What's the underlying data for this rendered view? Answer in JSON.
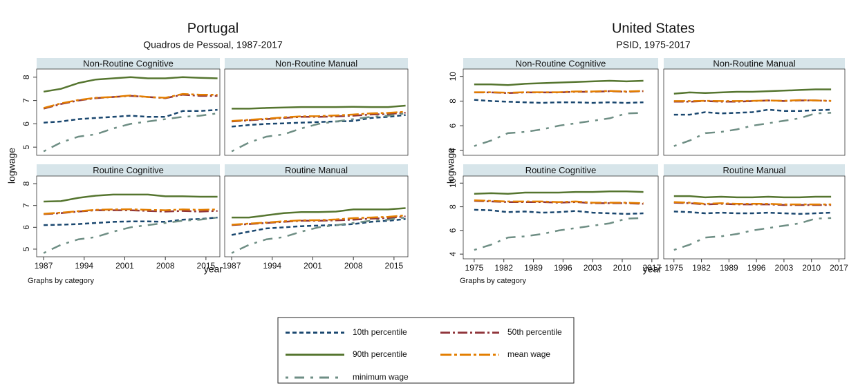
{
  "chart_data": [
    {
      "type": "line",
      "title": "Portugal",
      "subtitle": "Quadros de Pessoal, 1987-2017",
      "xlabel": "year",
      "ylabel": "logwage",
      "note": "Graphs by category",
      "x": [
        1987,
        1990,
        1993,
        1996,
        1999,
        2002,
        2005,
        2008,
        2011,
        2014,
        2017
      ],
      "xlim": [
        1985.8,
        2017.4
      ],
      "xticks": [
        1987,
        1994,
        2001,
        2008,
        2015
      ],
      "ylim": [
        4.65,
        8.35
      ],
      "yticks": [
        5,
        6,
        7,
        8
      ],
      "panels": [
        {
          "title": "Non-Routine Cognitive",
          "values": [
            [
              6.05,
              6.1,
              6.2,
              6.25,
              6.3,
              6.35,
              6.3,
              6.3,
              6.55,
              6.55,
              6.6
            ],
            [
              6.65,
              6.85,
              7.0,
              7.1,
              7.15,
              7.2,
              7.15,
              7.1,
              7.25,
              7.2,
              7.2
            ],
            [
              7.38,
              7.5,
              7.75,
              7.9,
              7.95,
              8.0,
              7.95,
              7.95,
              8.0,
              7.97,
              7.95
            ],
            [
              6.68,
              6.88,
              7.02,
              7.12,
              7.15,
              7.22,
              7.15,
              7.12,
              7.28,
              7.25,
              7.25
            ],
            [
              4.82,
              5.2,
              5.45,
              5.55,
              5.8,
              6.0,
              6.1,
              6.2,
              6.3,
              6.35,
              6.45
            ]
          ]
        },
        {
          "title": "Non-Routine Manual",
          "values": [
            [
              5.88,
              5.95,
              6.0,
              6.02,
              6.05,
              6.08,
              6.1,
              6.12,
              6.25,
              6.3,
              6.38
            ],
            [
              6.1,
              6.15,
              6.2,
              6.25,
              6.3,
              6.3,
              6.32,
              6.35,
              6.4,
              6.42,
              6.48
            ],
            [
              6.65,
              6.65,
              6.68,
              6.7,
              6.72,
              6.72,
              6.72,
              6.73,
              6.72,
              6.72,
              6.78
            ],
            [
              6.12,
              6.17,
              6.22,
              6.28,
              6.32,
              6.33,
              6.36,
              6.4,
              6.45,
              6.47,
              6.52
            ],
            [
              4.82,
              5.2,
              5.45,
              5.55,
              5.8,
              6.0,
              6.1,
              6.2,
              6.3,
              6.35,
              6.45
            ]
          ]
        },
        {
          "title": "Routine Cognitive",
          "values": [
            [
              6.1,
              6.12,
              6.15,
              6.2,
              6.25,
              6.27,
              6.27,
              6.25,
              6.35,
              6.38,
              6.45
            ],
            [
              6.6,
              6.65,
              6.72,
              6.78,
              6.78,
              6.78,
              6.75,
              6.72,
              6.75,
              6.72,
              6.75
            ],
            [
              7.18,
              7.2,
              7.35,
              7.45,
              7.5,
              7.5,
              7.5,
              7.42,
              7.42,
              7.4,
              7.4
            ],
            [
              6.62,
              6.67,
              6.74,
              6.8,
              6.82,
              6.83,
              6.8,
              6.78,
              6.82,
              6.8,
              6.82
            ],
            [
              4.82,
              5.2,
              5.45,
              5.55,
              5.8,
              6.0,
              6.1,
              6.2,
              6.3,
              6.35,
              6.45
            ]
          ]
        },
        {
          "title": "Routine Manual",
          "values": [
            [
              5.65,
              5.8,
              5.95,
              6.0,
              6.05,
              6.08,
              6.1,
              6.15,
              6.25,
              6.3,
              6.38
            ],
            [
              6.1,
              6.15,
              6.2,
              6.25,
              6.3,
              6.3,
              6.32,
              6.35,
              6.4,
              6.42,
              6.5
            ],
            [
              6.45,
              6.45,
              6.55,
              6.65,
              6.7,
              6.7,
              6.72,
              6.82,
              6.82,
              6.82,
              6.88
            ],
            [
              6.12,
              6.17,
              6.22,
              6.28,
              6.32,
              6.33,
              6.36,
              6.42,
              6.45,
              6.48,
              6.55
            ],
            [
              4.82,
              5.2,
              5.45,
              5.55,
              5.8,
              6.0,
              6.1,
              6.2,
              6.3,
              6.35,
              6.45
            ]
          ]
        }
      ]
    },
    {
      "type": "line",
      "title": "United States",
      "subtitle": "PSID, 1975-2017",
      "xlabel": "year",
      "ylabel": "logwage",
      "note": "Graphs by category",
      "x": [
        1975,
        1979,
        1983,
        1987,
        1991,
        1995,
        1999,
        2003,
        2007,
        2011,
        2015
      ],
      "xlim": [
        1972.4,
        2018.5
      ],
      "xticks": [
        1975,
        1982,
        1989,
        1996,
        2003,
        2010,
        2017
      ],
      "ylim": [
        3.6,
        10.6
      ],
      "yticks": [
        4,
        6,
        8,
        10
      ],
      "panels": [
        {
          "title": "Non-Routine Cognitive",
          "values": [
            [
              8.1,
              8.0,
              7.95,
              7.9,
              7.85,
              7.9,
              7.9,
              7.85,
              7.9,
              7.85,
              7.9
            ],
            [
              8.7,
              8.7,
              8.65,
              8.7,
              8.7,
              8.7,
              8.75,
              8.75,
              8.8,
              8.75,
              8.8
            ],
            [
              9.35,
              9.35,
              9.3,
              9.4,
              9.45,
              9.5,
              9.55,
              9.6,
              9.65,
              9.6,
              9.65
            ],
            [
              8.72,
              8.72,
              8.68,
              8.72,
              8.72,
              8.72,
              8.78,
              8.78,
              8.82,
              8.78,
              8.82
            ],
            [
              4.35,
              4.8,
              5.4,
              5.5,
              5.7,
              6.0,
              6.2,
              6.4,
              6.6,
              7.0,
              7.05
            ]
          ]
        },
        {
          "title": "Non-Routine Manual",
          "values": [
            [
              6.9,
              6.9,
              7.1,
              7.0,
              7.05,
              7.1,
              7.3,
              7.2,
              7.2,
              7.25,
              7.3
            ],
            [
              7.95,
              7.95,
              8.0,
              7.95,
              7.95,
              8.0,
              8.05,
              8.0,
              8.05,
              8.05,
              8.0
            ],
            [
              8.6,
              8.7,
              8.65,
              8.7,
              8.75,
              8.75,
              8.8,
              8.85,
              8.9,
              8.95,
              8.95
            ],
            [
              8.0,
              8.0,
              8.02,
              8.0,
              8.0,
              8.02,
              8.05,
              8.02,
              8.08,
              8.05,
              8.02
            ],
            [
              4.35,
              4.8,
              5.4,
              5.5,
              5.7,
              6.0,
              6.2,
              6.4,
              6.6,
              7.0,
              7.05
            ]
          ]
        },
        {
          "title": "Routine Cognitive",
          "values": [
            [
              7.75,
              7.7,
              7.55,
              7.6,
              7.5,
              7.55,
              7.65,
              7.5,
              7.45,
              7.4,
              7.45
            ],
            [
              8.5,
              8.45,
              8.4,
              8.4,
              8.4,
              8.35,
              8.4,
              8.3,
              8.3,
              8.3,
              8.25
            ],
            [
              9.1,
              9.15,
              9.1,
              9.2,
              9.2,
              9.2,
              9.25,
              9.25,
              9.3,
              9.3,
              9.25
            ],
            [
              8.55,
              8.5,
              8.45,
              8.45,
              8.45,
              8.4,
              8.45,
              8.35,
              8.35,
              8.35,
              8.3
            ],
            [
              4.35,
              4.8,
              5.4,
              5.5,
              5.7,
              6.0,
              6.2,
              6.4,
              6.6,
              7.0,
              7.05
            ]
          ]
        },
        {
          "title": "Routine Manual",
          "values": [
            [
              7.6,
              7.55,
              7.45,
              7.5,
              7.45,
              7.45,
              7.5,
              7.45,
              7.4,
              7.45,
              7.5
            ],
            [
              8.35,
              8.3,
              8.2,
              8.25,
              8.2,
              8.2,
              8.2,
              8.15,
              8.15,
              8.15,
              8.15
            ],
            [
              8.9,
              8.9,
              8.8,
              8.85,
              8.8,
              8.8,
              8.85,
              8.8,
              8.8,
              8.85,
              8.85
            ],
            [
              8.4,
              8.35,
              8.25,
              8.3,
              8.25,
              8.25,
              8.25,
              8.2,
              8.2,
              8.2,
              8.2
            ],
            [
              4.35,
              4.8,
              5.4,
              5.5,
              5.7,
              6.0,
              6.2,
              6.4,
              6.6,
              7.0,
              7.05
            ]
          ]
        }
      ]
    }
  ],
  "legend": [
    {
      "name": "10th percentile",
      "color": "#1a476f",
      "style": "dash"
    },
    {
      "name": "50th percentile",
      "color": "#90353b",
      "style": "dash-dot"
    },
    {
      "name": "90th percentile",
      "color": "#55752f",
      "style": "solid"
    },
    {
      "name": "mean wage",
      "color": "#e37e00",
      "style": "long-dash-dot"
    },
    {
      "name": "minimum wage",
      "color": "#6e8e84",
      "style": "dot-long-dash"
    }
  ]
}
